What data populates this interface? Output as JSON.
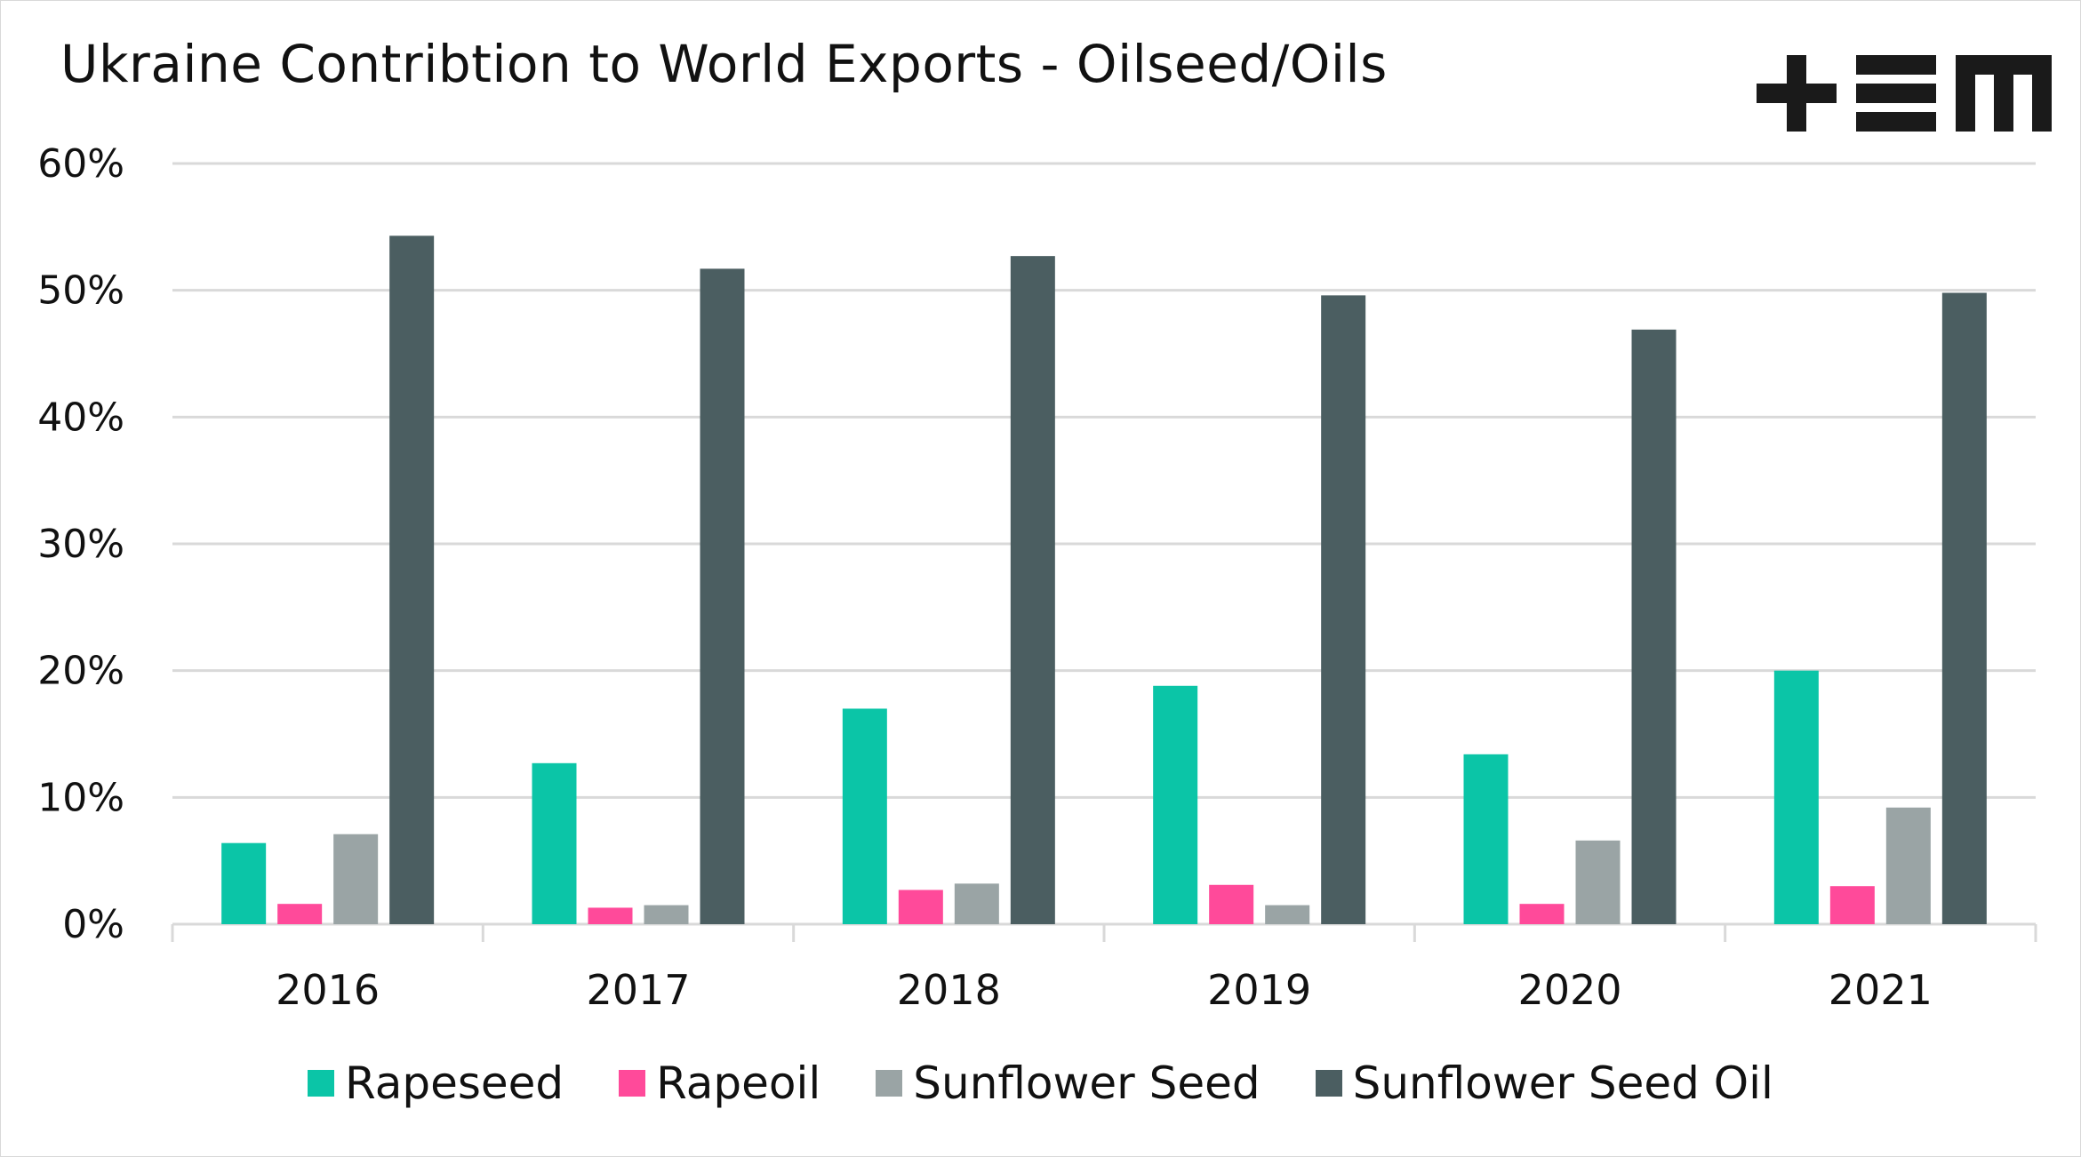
{
  "chart_data": {
    "type": "bar",
    "title": "Ukraine Contribtion to World Exports - Oilseed/Oils",
    "xlabel": "",
    "ylabel": "",
    "ylim": [
      0,
      60
    ],
    "yticks": [
      "0%",
      "10%",
      "20%",
      "30%",
      "40%",
      "50%",
      "60%"
    ],
    "ytick_values": [
      0,
      10,
      20,
      30,
      40,
      50,
      60
    ],
    "grid": true,
    "legend_position": "bottom",
    "categories": [
      "2016",
      "2017",
      "2018",
      "2019",
      "2020",
      "2021"
    ],
    "series": [
      {
        "name": "Rapeseed",
        "color": "#0bc5a7",
        "values": [
          6.4,
          12.7,
          17.0,
          18.8,
          13.4,
          20.0
        ]
      },
      {
        "name": "Rapeoil",
        "color": "#ff4a9a",
        "values": [
          1.6,
          1.3,
          2.7,
          3.1,
          1.6,
          3.0
        ]
      },
      {
        "name": "Sunflower Seed",
        "color": "#9aa4a5",
        "values": [
          7.1,
          1.5,
          3.2,
          1.5,
          6.6,
          9.2
        ]
      },
      {
        "name": "Sunflower Seed Oil",
        "color": "#4b5e61",
        "values": [
          54.3,
          51.7,
          52.7,
          49.6,
          46.9,
          49.8
        ]
      }
    ]
  },
  "logo": {
    "label": "+EM",
    "icon": "tem-logo-icon"
  }
}
